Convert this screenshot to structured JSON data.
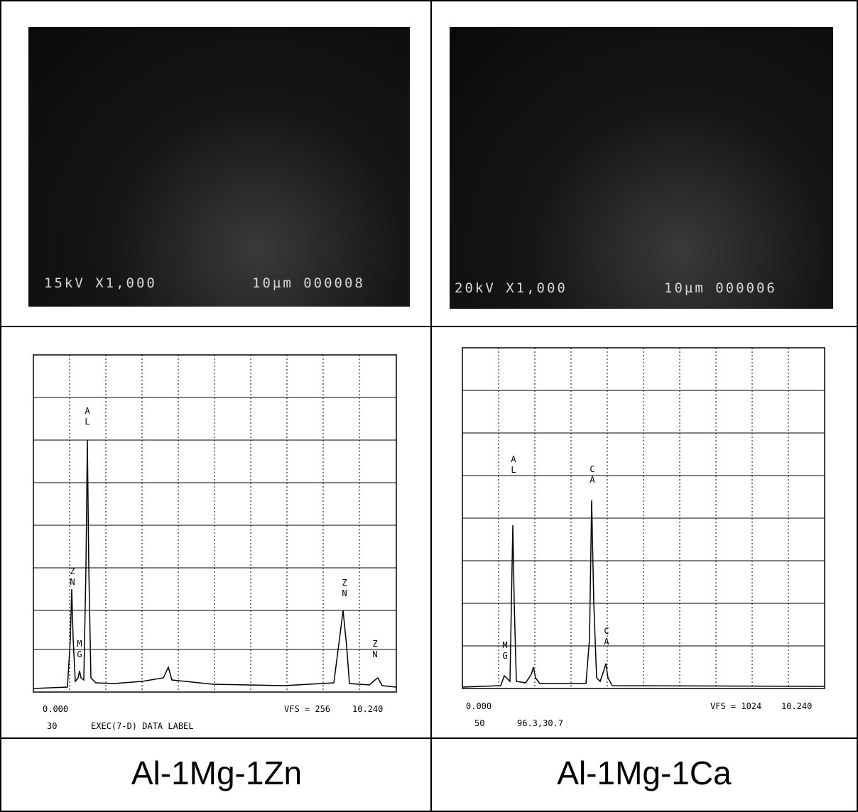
{
  "panels": [
    {
      "sem": {
        "voltage_mag": "15kV X1,000",
        "scale_id": "10µm 000008"
      },
      "spectrum": {
        "peak_labels": [
          "ZN",
          "MG",
          "AL",
          "ZN",
          "ZN"
        ],
        "x_start": "0.000",
        "vfs": "VFS = 256",
        "x_end": "10.240",
        "footer_left": "30",
        "footer_text": "EXEC(7-D) DATA LABEL"
      },
      "caption": "Al-1Mg-1Zn"
    },
    {
      "sem": {
        "voltage_mag": "20kV X1,000",
        "scale_id": "10µm 000006"
      },
      "spectrum": {
        "peak_labels": [
          "MG",
          "AL",
          "CA",
          "CA"
        ],
        "x_start": "0.000",
        "vfs": "VFS = 1024",
        "x_end": "10.240",
        "footer_left": "50",
        "footer_text": "96.3,30.7"
      },
      "caption": "Al-1Mg-1Ca"
    }
  ]
}
